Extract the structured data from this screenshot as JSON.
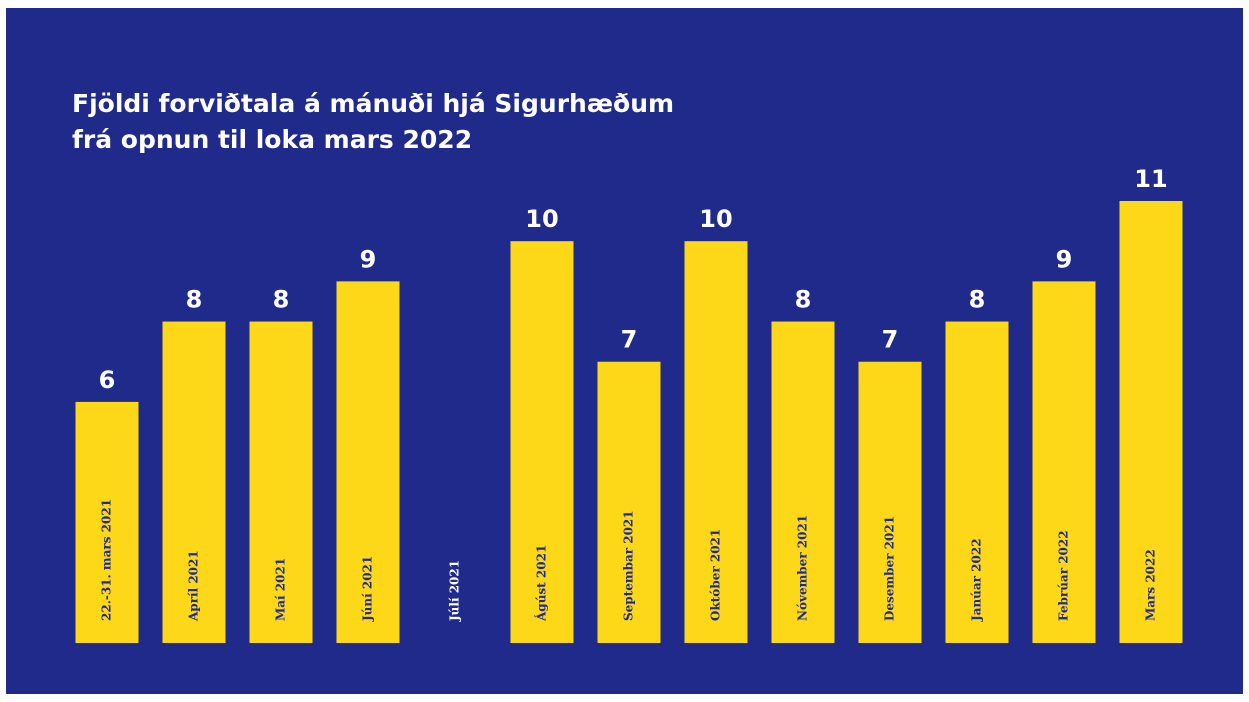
{
  "title": {
    "line1": "Fjöldi forviðtala á mánuði hjá Sigurhæðum",
    "line2": "frá opnun til loka mars 2022"
  },
  "colors": {
    "background": "#1f2a8a",
    "bar": "#fdd819",
    "text": "#ffffff"
  },
  "chart_data": {
    "type": "bar",
    "title": "Fjöldi forviðtala á mánuði hjá Sigurhæðum frá opnun til loka mars 2022",
    "categories": [
      "22.-31. mars 2021",
      "Apríl 2021",
      "Maí 2021",
      "Júní 2021",
      "Júlí 2021",
      "Ágúst 2021",
      "Septembar 2021",
      "Október 2021",
      "Nóvember 2021",
      "Desember 2021",
      "Janúar 2022",
      "Febrúar 2022",
      "Mars 2022"
    ],
    "values": [
      6,
      8,
      8,
      9,
      null,
      10,
      7,
      10,
      8,
      7,
      8,
      9,
      11
    ],
    "value_labels": [
      "6",
      "8",
      "8",
      "9",
      "",
      "10",
      "7",
      "10",
      "8",
      "7",
      "8",
      "9",
      "11"
    ],
    "xlabel": "",
    "ylabel": "",
    "ylim": [
      0,
      11
    ],
    "grid": false,
    "legend": "none"
  }
}
